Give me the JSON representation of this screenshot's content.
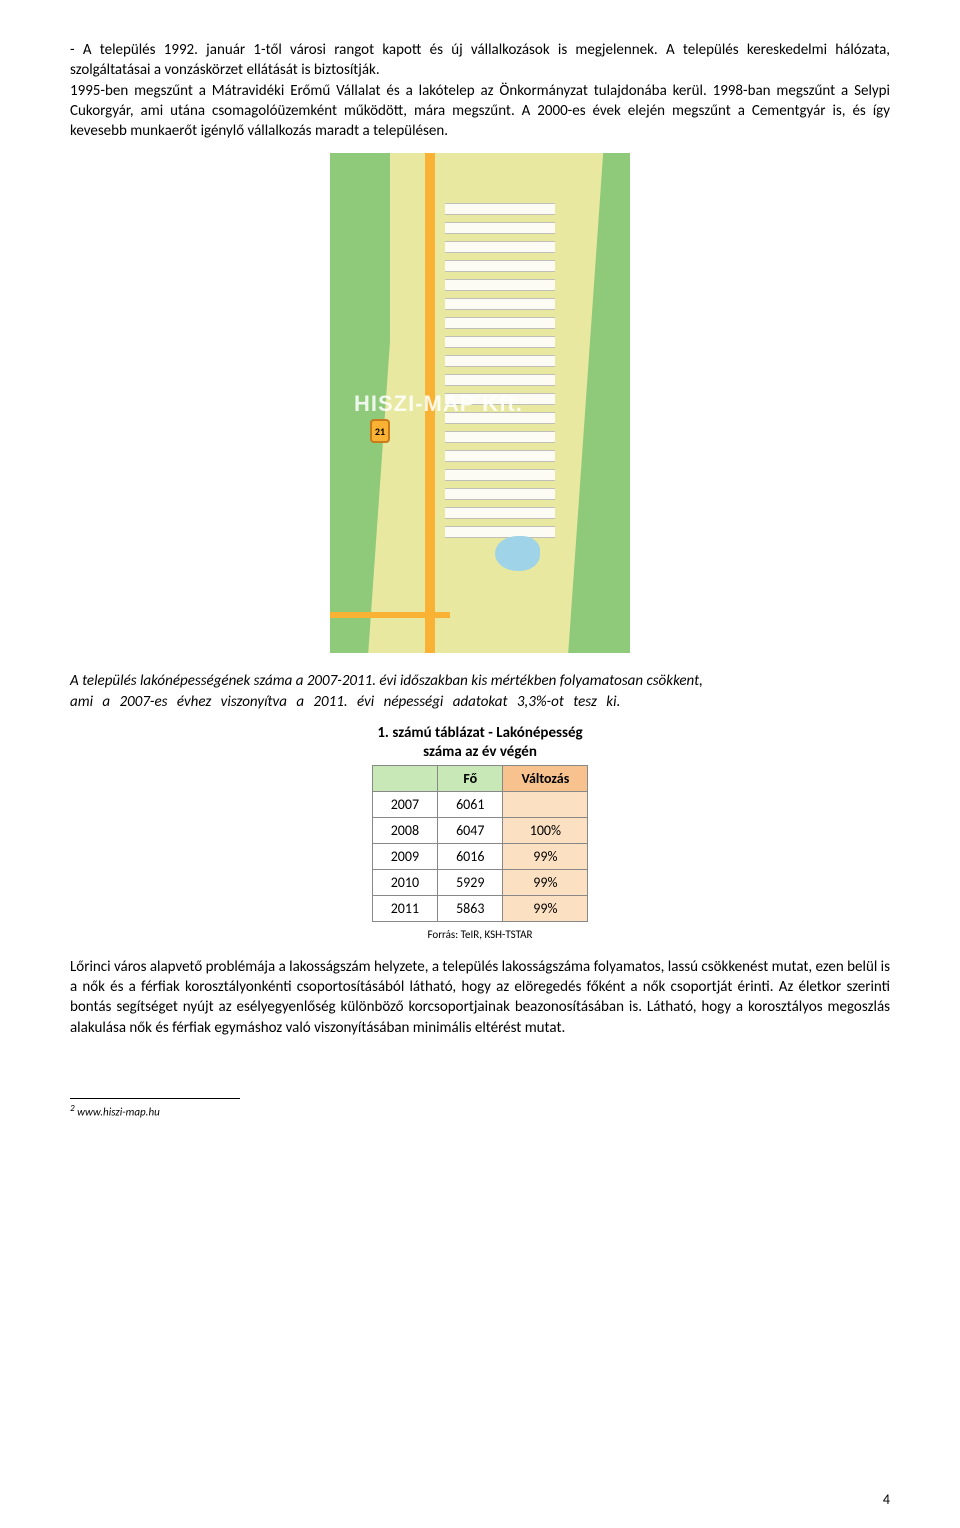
{
  "para1_parts": {
    "a": "- A település 1992. január 1-től városi rangot kapott és új vállalkozások is megjelennek. A település kereskedelmi hálózata, szolgáltatásai a vonzáskörzet ellátását is biztosítják.",
    "b": "1995-ben megszűnt a Mátravidéki Erőmű Vállalat és a lakótelep az Önkormányzat tulajdonába kerül. 1998-ban megszűnt a Selypi Cukorgyár, ami utána csomagolóüzemként működött, mára megszűnt. A 2000-es évek elején megszűnt a Cementgyár is, és így kevesebb munkaerőt igénylő vállalkozás maradt a településen."
  },
  "watermark": "HISZI-MAP Kft.",
  "road_badge": "21",
  "fn2_marker": "2",
  "para2_parts": {
    "a": "A település lakónépességének száma a 2007-2011. évi időszakban kis mértékben  folyamatosan csökkent,",
    "b": "ami a 2007-es évhez viszonyítva a 2011. évi népességi adatokat 3,3%-ot tesz ki."
  },
  "table": {
    "caption_l1": "1. számú táblázat - Lakónépesség",
    "caption_l2": "száma az év végén",
    "header_fo": "Fő",
    "header_valtozas": "Változás",
    "rows": [
      {
        "year": "2007",
        "pop": "6061",
        "chg": ""
      },
      {
        "year": "2008",
        "pop": "6047",
        "chg": "100%"
      },
      {
        "year": "2009",
        "pop": "6016",
        "chg": "99%"
      },
      {
        "year": "2010",
        "pop": "5929",
        "chg": "99%"
      },
      {
        "year": "2011",
        "pop": "5863",
        "chg": "99%"
      }
    ],
    "source": "Forrás: TeIR, KSH-TSTAR"
  },
  "para3": "Lőrinci város alapvető problémája a lakosságszám helyzete, a település lakosságszáma folyamatos, lassú csökkenést mutat, ezen belül is a nők és a férfiak korosztályonkénti csoportosításából látható, hogy az elöregedés főként a nők csoportját érinti. Az életkor szerinti bontás segítséget nyújt az esélyegyenlőség különböző korcsoportjainak beazonosításában is. Látható, hogy a korosztályos megoszlás alakulása nők és férfiak egymáshoz való viszonyításában minimális eltérést mutat.",
  "footnote_marker": "2",
  "footnote_text": " www.hiszi-map.hu",
  "page_number": "4"
}
